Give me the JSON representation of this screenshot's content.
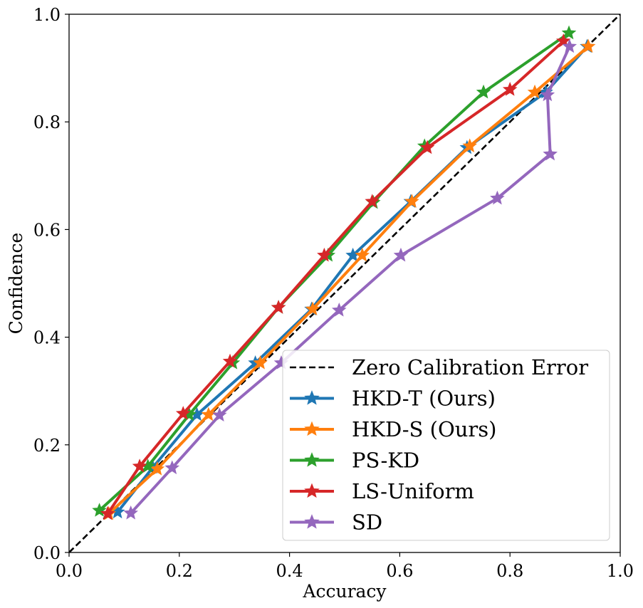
{
  "chart_data": {
    "type": "line",
    "title": "",
    "xlabel": "Accuracy",
    "ylabel": "Confidence",
    "xlim": [
      0.0,
      1.0
    ],
    "ylim": [
      0.0,
      1.0
    ],
    "xticks": [
      "0.0",
      "0.2",
      "0.4",
      "0.6",
      "0.8",
      "1.0"
    ],
    "yticks": [
      "0.0",
      "0.2",
      "0.4",
      "0.6",
      "0.8",
      "1.0"
    ],
    "grid": false,
    "legend_position": "lower-right",
    "reference_line": {
      "name": "Zero Calibration Error",
      "color": "#000000",
      "style": "dashed",
      "x": [
        0.0,
        1.0
      ],
      "y": [
        0.0,
        1.0
      ]
    },
    "series": [
      {
        "name": "HKD-T (Ours)",
        "color": "#1f77b4",
        "marker": "star",
        "x": [
          0.088,
          0.152,
          0.232,
          0.338,
          0.44,
          0.515,
          0.62,
          0.722,
          0.865,
          0.94
        ],
        "y": [
          0.075,
          0.158,
          0.256,
          0.352,
          0.452,
          0.552,
          0.652,
          0.752,
          0.855,
          0.94
        ]
      },
      {
        "name": "HKD-S (Ours)",
        "color": "#ff7f0e",
        "marker": "star",
        "x": [
          0.072,
          0.16,
          0.253,
          0.347,
          0.442,
          0.532,
          0.622,
          0.727,
          0.845,
          0.942
        ],
        "y": [
          0.072,
          0.155,
          0.256,
          0.352,
          0.452,
          0.552,
          0.652,
          0.755,
          0.855,
          0.94
        ]
      },
      {
        "name": "PS-KD",
        "color": "#2ca02c",
        "marker": "star",
        "x": [
          0.055,
          0.143,
          0.218,
          0.297,
          0.38,
          0.47,
          0.552,
          0.645,
          0.752,
          0.907
        ],
        "y": [
          0.078,
          0.16,
          0.256,
          0.352,
          0.455,
          0.552,
          0.65,
          0.755,
          0.855,
          0.965
        ]
      },
      {
        "name": "LS-Uniform",
        "color": "#d62728",
        "marker": "star",
        "x": [
          0.07,
          0.128,
          0.207,
          0.292,
          0.38,
          0.463,
          0.55,
          0.65,
          0.8,
          0.897
        ],
        "y": [
          0.072,
          0.16,
          0.258,
          0.355,
          0.455,
          0.552,
          0.652,
          0.752,
          0.86,
          0.95
        ]
      },
      {
        "name": "SD",
        "color": "#9467bd",
        "marker": "star",
        "x": [
          0.112,
          0.187,
          0.273,
          0.385,
          0.49,
          0.602,
          0.777,
          0.873,
          0.868,
          0.908
        ],
        "y": [
          0.073,
          0.157,
          0.255,
          0.352,
          0.45,
          0.552,
          0.658,
          0.74,
          0.85,
          0.94
        ]
      }
    ]
  }
}
